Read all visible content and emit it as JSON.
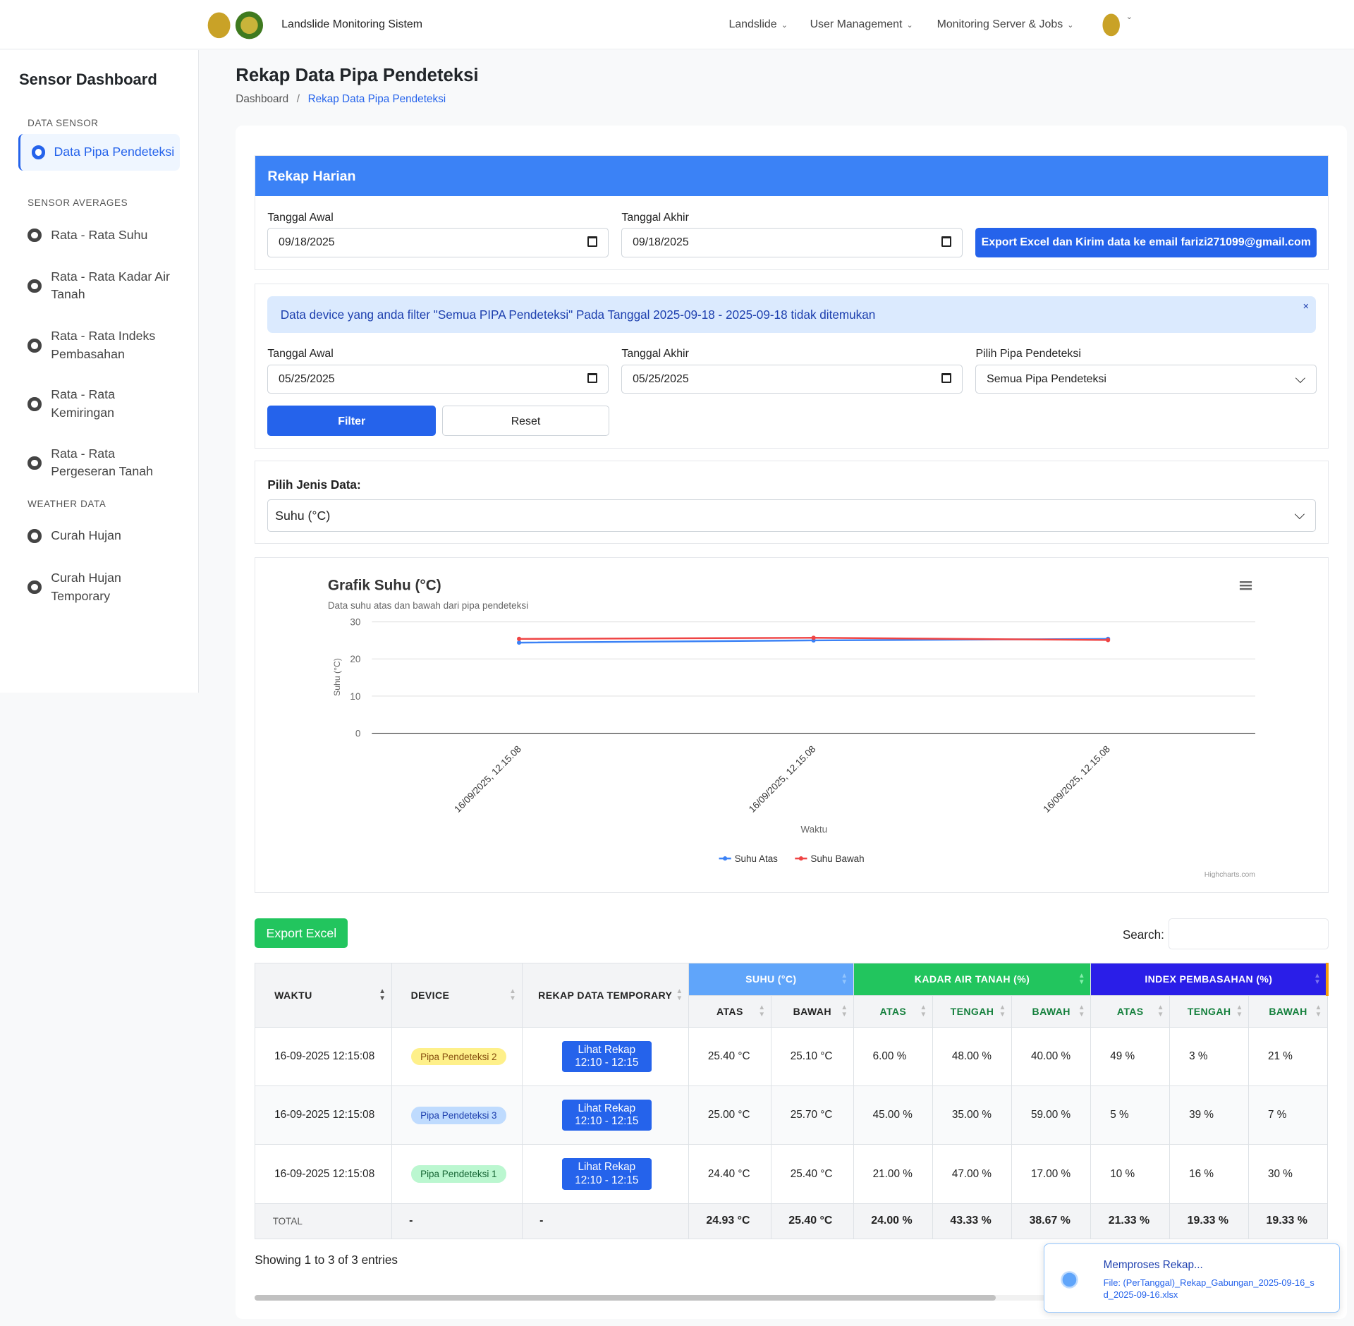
{
  "navbar": {
    "title": "Landslide Monitoring Sistem",
    "items": [
      "Landslide",
      "User Management",
      "Monitoring Server & Jobs"
    ]
  },
  "sidebar": {
    "title": "Sensor Dashboard",
    "sections": [
      "DATA SENSOR",
      "SENSOR AVERAGES",
      "WEATHER DATA"
    ],
    "items": [
      "Data Pipa Pendeteksi",
      "Rata - Rata Suhu",
      "Rata - Rata Kadar Air Tanah",
      "Rata - Rata Indeks Pembasahan",
      "Rata - Rata Kemiringan",
      "Rata - Rata Pergeseran Tanah",
      "Curah Hujan",
      "Curah Hujan Temporary"
    ]
  },
  "page": {
    "title": "Rekap Data Pipa Pendeteksi",
    "breadcrumb": [
      "Dashboard",
      "/",
      "Rekap Data Pipa Pendeteksi"
    ]
  },
  "rekap": {
    "header": "Rekap Harian",
    "start_label": "Tanggal Awal",
    "start": "09/18/2025",
    "end_label": "Tanggal Akhir",
    "end": "09/18/2025",
    "export_button": "Export Excel dan Kirim data ke email farizi271099@gmail.com"
  },
  "filter": {
    "alert": "Data device yang anda filter \"Semua PIPA Pendeteksi\" Pada Tanggal 2025-09-18 - 2025-09-18 tidak ditemukan",
    "alert_close": "×",
    "start_label": "Tanggal Awal",
    "start": "05/25/2025",
    "end_label": "Tanggal Akhir",
    "end": "05/25/2025",
    "pipe_label": "Pilih Pipa Pendeteksi",
    "pipe": "Semua Pipa Pendeteksi",
    "filter_button": "Filter",
    "reset_button": "Reset"
  },
  "jenis": {
    "label": "Pilih Jenis Data:",
    "value": "Suhu (°C)"
  },
  "chart_data": {
    "type": "line",
    "title": "Grafik Suhu (°C)",
    "subtitle": "Data suhu atas dan bawah dari pipa pendeteksi",
    "xlabel": "Waktu",
    "ylabel": "Suhu (°C)",
    "ylim": [
      0,
      30
    ],
    "yticks": [
      "0",
      "10",
      "20",
      "30"
    ],
    "categories": [
      "16/09/2025, 12.15.08",
      "16/09/2025, 12.15.08",
      "16/09/2025, 12.15.08"
    ],
    "series": [
      {
        "name": "Suhu Atas",
        "color": "#3b82f6",
        "values": [
          24.4,
          25.0,
          25.4
        ]
      },
      {
        "name": "Suhu Bawah",
        "color": "#ef4444",
        "values": [
          25.4,
          25.7,
          25.1
        ]
      }
    ],
    "legend": "bottom",
    "credit": "Highcharts.com"
  },
  "table": {
    "export_button": "Export Excel",
    "search_label": "Search:",
    "search_value": "",
    "headers": [
      "WAKTU",
      "DEVICE",
      "REKAP DATA TEMPORARY",
      "SUHU (°C)",
      "KADAR AIR TANAH (%)",
      "INDEX PEMBASAHAN (%)"
    ],
    "subheaders": [
      "ATAS",
      "BAWAH",
      "ATAS",
      "TENGAH",
      "BAWAH",
      "ATAS",
      "TENGAH",
      "BAWAH"
    ],
    "rows": [
      {
        "waktu": "16-09-2025 12:15:08",
        "device": "Pipa Pendeteksi 2",
        "rekap1": "Lihat Rekap",
        "rekap2": "12:10 - 12:15",
        "v": [
          "25.40 °C",
          "25.10 °C",
          "6.00 %",
          "48.00 %",
          "40.00 %",
          "49 %",
          "3 %",
          "21 %"
        ]
      },
      {
        "waktu": "16-09-2025 12:15:08",
        "device": "Pipa Pendeteksi 3",
        "rekap1": "Lihat Rekap",
        "rekap2": "12:10 - 12:15",
        "v": [
          "25.00 °C",
          "25.70 °C",
          "45.00 %",
          "35.00 %",
          "59.00 %",
          "5 %",
          "39 %",
          "7 %"
        ]
      },
      {
        "waktu": "16-09-2025 12:15:08",
        "device": "Pipa Pendeteksi 1",
        "rekap1": "Lihat Rekap",
        "rekap2": "12:10 - 12:15",
        "v": [
          "24.40 °C",
          "25.40 °C",
          "21.00 %",
          "47.00 %",
          "17.00 %",
          "10 %",
          "16 %",
          "30 %"
        ]
      }
    ],
    "total": {
      "label": "TOTAL",
      "device": "-",
      "rekap": "-",
      "v": [
        "24.93 °C",
        "25.40 °C",
        "24.00 %",
        "43.33 %",
        "38.67 %",
        "21.33 %",
        "19.33 %",
        "19.33 %"
      ]
    },
    "info": "Showing 1 to 3 of 3 entries"
  },
  "toast": {
    "title": "Memproses Rekap...",
    "file": "File: (PerTanggal)_Rekap_Gabungan_2025-09-16_sd_2025-09-16.xlsx"
  }
}
